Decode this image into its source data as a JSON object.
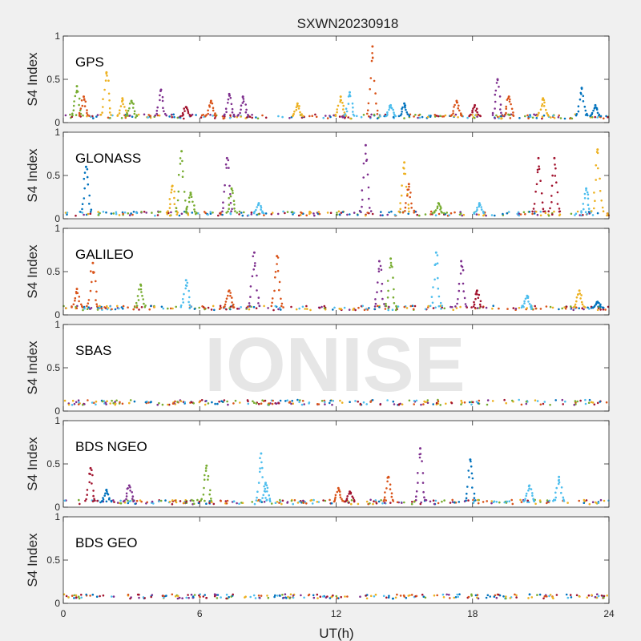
{
  "title": "SXWN20230918",
  "xlabel": "UT(h)",
  "watermark": "IONISE",
  "colors": [
    "#0072bd",
    "#d95319",
    "#edb120",
    "#7e2f8e",
    "#77ac30",
    "#4dbeee",
    "#a2142f"
  ],
  "chart_data": [
    {
      "type": "scatter",
      "panel": "GPS",
      "ylabel": "S4 Index",
      "xlim": [
        0,
        24
      ],
      "ylim": [
        0,
        1
      ],
      "xticks": [
        0,
        6,
        12,
        18,
        24
      ],
      "yticks": [
        0,
        0.5,
        1
      ],
      "baseline": 0.07,
      "bursts": [
        {
          "x": 0.6,
          "peak": 0.42,
          "color": 4
        },
        {
          "x": 0.9,
          "peak": 0.3,
          "color": 1
        },
        {
          "x": 1.9,
          "peak": 0.58,
          "color": 2
        },
        {
          "x": 2.6,
          "peak": 0.28,
          "color": 2
        },
        {
          "x": 3.0,
          "peak": 0.25,
          "color": 4
        },
        {
          "x": 4.3,
          "peak": 0.38,
          "color": 3
        },
        {
          "x": 5.4,
          "peak": 0.18,
          "color": 6
        },
        {
          "x": 6.5,
          "peak": 0.25,
          "color": 1
        },
        {
          "x": 7.3,
          "peak": 0.33,
          "color": 3
        },
        {
          "x": 7.9,
          "peak": 0.3,
          "color": 3
        },
        {
          "x": 10.3,
          "peak": 0.22,
          "color": 2
        },
        {
          "x": 12.2,
          "peak": 0.3,
          "color": 2
        },
        {
          "x": 12.6,
          "peak": 0.35,
          "color": 5
        },
        {
          "x": 13.6,
          "peak": 0.88,
          "color": 1
        },
        {
          "x": 14.4,
          "peak": 0.2,
          "color": 5
        },
        {
          "x": 15.0,
          "peak": 0.22,
          "color": 0
        },
        {
          "x": 17.3,
          "peak": 0.25,
          "color": 1
        },
        {
          "x": 18.1,
          "peak": 0.2,
          "color": 6
        },
        {
          "x": 19.1,
          "peak": 0.5,
          "color": 3
        },
        {
          "x": 19.6,
          "peak": 0.3,
          "color": 1
        },
        {
          "x": 21.1,
          "peak": 0.28,
          "color": 2
        },
        {
          "x": 22.8,
          "peak": 0.4,
          "color": 0
        },
        {
          "x": 23.4,
          "peak": 0.2,
          "color": 0
        }
      ]
    },
    {
      "type": "scatter",
      "panel": "GLONASS",
      "ylabel": "S4 Index",
      "xlim": [
        0,
        24
      ],
      "ylim": [
        0,
        1
      ],
      "xticks": [
        0,
        6,
        12,
        18,
        24
      ],
      "yticks": [
        0,
        0.5,
        1
      ],
      "baseline": 0.06,
      "bursts": [
        {
          "x": 1.0,
          "peak": 0.6,
          "color": 0
        },
        {
          "x": 4.8,
          "peak": 0.38,
          "color": 2
        },
        {
          "x": 5.2,
          "peak": 0.78,
          "color": 4
        },
        {
          "x": 5.6,
          "peak": 0.3,
          "color": 4
        },
        {
          "x": 7.2,
          "peak": 0.7,
          "color": 3
        },
        {
          "x": 7.4,
          "peak": 0.35,
          "color": 4
        },
        {
          "x": 8.6,
          "peak": 0.18,
          "color": 5
        },
        {
          "x": 13.3,
          "peak": 0.85,
          "color": 3
        },
        {
          "x": 15.0,
          "peak": 0.65,
          "color": 2
        },
        {
          "x": 15.2,
          "peak": 0.4,
          "color": 1
        },
        {
          "x": 16.5,
          "peak": 0.18,
          "color": 4
        },
        {
          "x": 18.3,
          "peak": 0.18,
          "color": 5
        },
        {
          "x": 20.9,
          "peak": 0.7,
          "color": 6
        },
        {
          "x": 21.6,
          "peak": 0.7,
          "color": 6
        },
        {
          "x": 23.0,
          "peak": 0.35,
          "color": 5
        },
        {
          "x": 23.5,
          "peak": 0.8,
          "color": 2
        }
      ]
    },
    {
      "type": "scatter",
      "panel": "GALILEO",
      "ylabel": "S4 Index",
      "xlim": [
        0,
        24
      ],
      "ylim": [
        0,
        1
      ],
      "xticks": [
        0,
        6,
        12,
        18,
        24
      ],
      "yticks": [
        0,
        0.5,
        1
      ],
      "baseline": 0.08,
      "bursts": [
        {
          "x": 0.6,
          "peak": 0.3,
          "color": 1
        },
        {
          "x": 1.3,
          "peak": 0.6,
          "color": 1
        },
        {
          "x": 3.4,
          "peak": 0.35,
          "color": 4
        },
        {
          "x": 5.4,
          "peak": 0.4,
          "color": 5
        },
        {
          "x": 7.3,
          "peak": 0.28,
          "color": 1
        },
        {
          "x": 8.4,
          "peak": 0.72,
          "color": 3
        },
        {
          "x": 9.4,
          "peak": 0.68,
          "color": 1
        },
        {
          "x": 13.9,
          "peak": 0.62,
          "color": 3
        },
        {
          "x": 14.4,
          "peak": 0.65,
          "color": 4
        },
        {
          "x": 16.4,
          "peak": 0.72,
          "color": 5
        },
        {
          "x": 17.5,
          "peak": 0.62,
          "color": 3
        },
        {
          "x": 18.2,
          "peak": 0.28,
          "color": 6
        },
        {
          "x": 20.4,
          "peak": 0.22,
          "color": 5
        },
        {
          "x": 22.7,
          "peak": 0.28,
          "color": 2
        },
        {
          "x": 23.5,
          "peak": 0.15,
          "color": 0
        }
      ]
    },
    {
      "type": "scatter",
      "panel": "SBAS",
      "ylabel": "S4 Index",
      "xlim": [
        0,
        24
      ],
      "ylim": [
        0,
        1
      ],
      "xticks": [
        0,
        6,
        12,
        18,
        24
      ],
      "yticks": [
        0,
        0.5,
        1
      ],
      "baseline": 0.1,
      "bursts": []
    },
    {
      "type": "scatter",
      "panel": "BDS NGEO",
      "ylabel": "S4 Index",
      "xlim": [
        0,
        24
      ],
      "ylim": [
        0,
        1
      ],
      "xticks": [
        0,
        6,
        12,
        18,
        24
      ],
      "yticks": [
        0,
        0.5,
        1
      ],
      "baseline": 0.06,
      "bursts": [
        {
          "x": 1.2,
          "peak": 0.45,
          "color": 6
        },
        {
          "x": 1.9,
          "peak": 0.2,
          "color": 0
        },
        {
          "x": 2.9,
          "peak": 0.25,
          "color": 3
        },
        {
          "x": 6.3,
          "peak": 0.48,
          "color": 4
        },
        {
          "x": 8.7,
          "peak": 0.62,
          "color": 5
        },
        {
          "x": 8.9,
          "peak": 0.28,
          "color": 5
        },
        {
          "x": 12.1,
          "peak": 0.22,
          "color": 1
        },
        {
          "x": 12.6,
          "peak": 0.18,
          "color": 6
        },
        {
          "x": 14.3,
          "peak": 0.35,
          "color": 1
        },
        {
          "x": 15.7,
          "peak": 0.68,
          "color": 3
        },
        {
          "x": 17.9,
          "peak": 0.55,
          "color": 0
        },
        {
          "x": 20.5,
          "peak": 0.25,
          "color": 5
        },
        {
          "x": 21.8,
          "peak": 0.35,
          "color": 5
        }
      ]
    },
    {
      "type": "scatter",
      "panel": "BDS GEO",
      "ylabel": "S4 Index",
      "xlim": [
        0,
        24
      ],
      "ylim": [
        0,
        1
      ],
      "xticks": [
        0,
        6,
        12,
        18,
        24
      ],
      "yticks": [
        0,
        0.5,
        1
      ],
      "baseline": 0.08,
      "bursts": []
    }
  ]
}
